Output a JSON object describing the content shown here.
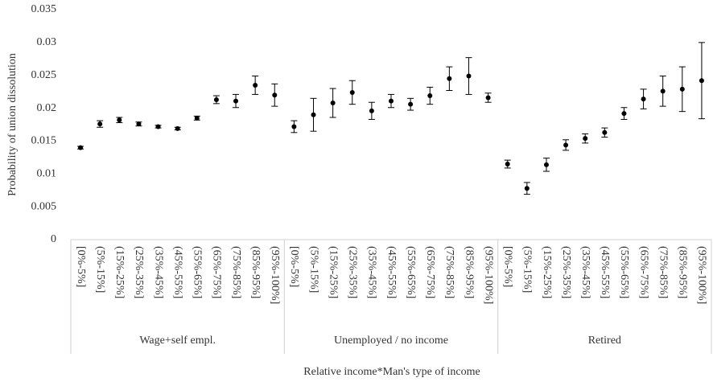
{
  "chart_data": {
    "type": "errorbar",
    "y_label": "Probability of union dissolution",
    "x_label": "Relative income*Man's type of income",
    "color": "#000000",
    "ylim": [
      0,
      0.035
    ],
    "yticks": [
      0,
      0.005,
      0.01,
      0.015,
      0.02,
      0.025,
      0.03,
      0.035
    ],
    "groups": [
      {
        "name": "Wage+self empl.",
        "categories": [
          "[0%-5%]",
          "(5%-15%]",
          "(15%-25%]",
          "(25%-35%]",
          "(35%-45%]",
          "(45%-55%]",
          "(55%-65%]",
          "(65%-75%]",
          "(75%-85%]",
          "(85%-95%]",
          "(95%-100%]"
        ],
        "values": [
          0.014,
          0.0176,
          0.0182,
          0.0176,
          0.0172,
          0.0169,
          0.0185,
          0.0213,
          0.0211,
          0.0235,
          0.022
        ],
        "errors": [
          0.0002,
          0.0005,
          0.0004,
          0.0003,
          0.0002,
          0.0002,
          0.0003,
          0.0006,
          0.001,
          0.0014,
          0.0017
        ]
      },
      {
        "name": "Unemployed / no income",
        "categories": [
          "[0%-5%]",
          "(5%-15%]",
          "(15%-25%]",
          "(25%-35%]",
          "(35%-45%]",
          "(45%-55%]",
          "(55%-65%]",
          "(65%-75%]",
          "(75%-85%]",
          "(85%-95%]",
          "(95%-100%]"
        ],
        "values": [
          0.0172,
          0.019,
          0.0208,
          0.0224,
          0.0196,
          0.0211,
          0.0206,
          0.0219,
          0.0245,
          0.0249,
          0.0216
        ],
        "errors": [
          0.0009,
          0.0025,
          0.0022,
          0.0018,
          0.0013,
          0.001,
          0.0009,
          0.0013,
          0.0018,
          0.0028,
          0.0007
        ]
      },
      {
        "name": "Retired",
        "categories": [
          "[0%-5%]",
          "(5%-15%]",
          "(15%-25%]",
          "(25%-35%]",
          "(35%-45%]",
          "(45%-55%]",
          "(55%-65%]",
          "(65%-75%]",
          "(75%-85%]",
          "(85%-95%]",
          "(95%-100%]"
        ],
        "values": [
          0.0115,
          0.0078,
          0.0114,
          0.0144,
          0.0154,
          0.0163,
          0.0192,
          0.0214,
          0.0226,
          0.0229,
          0.0242
        ],
        "errors": [
          0.0006,
          0.0009,
          0.001,
          0.0008,
          0.0007,
          0.0007,
          0.0009,
          0.0015,
          0.0023,
          0.0034,
          0.0058
        ]
      }
    ]
  }
}
